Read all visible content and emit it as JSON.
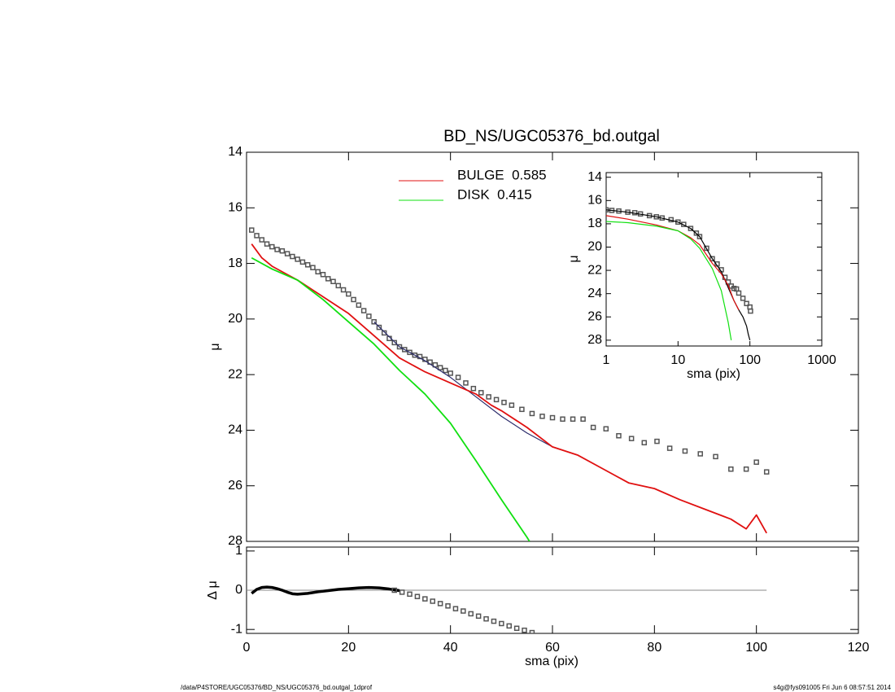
{
  "chart_data": [
    {
      "type": "line",
      "title": "BD_NS/UGC05376_bd.outgal",
      "ylabel": "μ",
      "xlim": [
        0,
        120
      ],
      "xticks": [
        0,
        20,
        40,
        60,
        80,
        100,
        120
      ],
      "xticklabels": false,
      "ylim": [
        28,
        14
      ],
      "yticks": [
        14,
        16,
        18,
        20,
        22,
        24,
        26,
        28
      ],
      "legend": true,
      "series": [
        {
          "style": "markers",
          "color": "#555555",
          "x": [
            1,
            2,
            3,
            4,
            5,
            6,
            7,
            8,
            9,
            10,
            11,
            12,
            13,
            14,
            15,
            16,
            17,
            18,
            19,
            20,
            21,
            22,
            23,
            24,
            25,
            26,
            27,
            28,
            29,
            30,
            31,
            32,
            33,
            34,
            35,
            36,
            37,
            38,
            39,
            40,
            41.5,
            43,
            44.5,
            46,
            47.5,
            49,
            50.5,
            52,
            54,
            56,
            58,
            60,
            62,
            64,
            66,
            68,
            70.5,
            73,
            75.5,
            78,
            80.5,
            83,
            86,
            89,
            92,
            95,
            98,
            100,
            102
          ],
          "values": [
            16.8,
            17.0,
            17.15,
            17.3,
            17.4,
            17.5,
            17.55,
            17.65,
            17.75,
            17.85,
            17.95,
            18.05,
            18.15,
            18.3,
            18.4,
            18.55,
            18.65,
            18.8,
            18.95,
            19.1,
            19.3,
            19.5,
            19.7,
            19.9,
            20.1,
            20.3,
            20.5,
            20.7,
            20.85,
            21.0,
            21.1,
            21.2,
            21.3,
            21.35,
            21.45,
            21.55,
            21.65,
            21.75,
            21.85,
            21.95,
            22.1,
            22.3,
            22.5,
            22.65,
            22.8,
            22.9,
            23.0,
            23.1,
            23.25,
            23.4,
            23.5,
            23.55,
            23.6,
            23.6,
            23.6,
            23.9,
            23.95,
            24.2,
            24.3,
            24.45,
            24.4,
            24.65,
            24.75,
            24.85,
            24.95,
            25.4,
            25.4,
            25.15,
            25.5
          ]
        },
        {
          "style": "line",
          "color": "#2a2a6a",
          "x": [
            25,
            30,
            35,
            40,
            45,
            50,
            55,
            60
          ],
          "values": [
            20.1,
            21.0,
            21.5,
            22.1,
            22.8,
            23.5,
            24.1,
            24.6
          ]
        },
        {
          "style": "line",
          "name": "BULGE  0.585",
          "color": "#e01010",
          "x": [
            1,
            3,
            5,
            8,
            10,
            15,
            20,
            25,
            30,
            35,
            40,
            45,
            48,
            50,
            55,
            60,
            65,
            70,
            75,
            80,
            85,
            90,
            95,
            98,
            100,
            102
          ],
          "values": [
            17.3,
            17.8,
            18.1,
            18.4,
            18.6,
            19.2,
            19.8,
            20.6,
            21.4,
            21.9,
            22.3,
            22.7,
            23.1,
            23.3,
            23.9,
            24.6,
            24.9,
            25.4,
            25.9,
            26.1,
            26.5,
            26.85,
            27.2,
            27.55,
            27.05,
            27.7
          ]
        },
        {
          "style": "line",
          "name": "DISK  0.415",
          "color": "#10e010",
          "x": [
            1,
            5,
            10,
            15,
            20,
            25,
            30,
            35,
            40,
            45,
            50,
            55,
            55.5
          ],
          "values": [
            17.8,
            18.2,
            18.6,
            19.3,
            20.1,
            20.9,
            21.85,
            22.7,
            23.75,
            25.1,
            26.5,
            27.85,
            28
          ]
        }
      ]
    },
    {
      "type": "line",
      "xlabel": "sma (pix)",
      "ylabel": "Δ μ",
      "xlim": [
        0,
        120
      ],
      "xticks": [
        0,
        20,
        40,
        60,
        80,
        100,
        120
      ],
      "ylim": [
        -1.1,
        1.1
      ],
      "yticks": [
        -1,
        0,
        1
      ],
      "reference_line": {
        "y": 0,
        "x": [
          0,
          102
        ],
        "color": "#888888"
      },
      "series": [
        {
          "style": "thickline",
          "color": "#000000",
          "x": [
            1,
            2,
            3,
            4,
            5,
            6,
            7,
            8,
            9,
            10,
            12,
            14,
            16,
            18,
            20,
            22,
            24,
            26,
            28,
            30
          ],
          "values": [
            -0.08,
            0.02,
            0.07,
            0.08,
            0.07,
            0.04,
            0,
            -0.05,
            -0.09,
            -0.1,
            -0.08,
            -0.04,
            -0.01,
            0.02,
            0.04,
            0.06,
            0.07,
            0.06,
            0.03,
            -0.01
          ]
        },
        {
          "style": "markers",
          "color": "#555555",
          "x": [
            29,
            30.5,
            32,
            33.5,
            35,
            36.5,
            38,
            39.5,
            41,
            42.5,
            44,
            45.5,
            47,
            48.5,
            50,
            51.5,
            53,
            54.5,
            56
          ],
          "values": [
            0,
            -0.05,
            -0.1,
            -0.16,
            -0.22,
            -0.28,
            -0.34,
            -0.4,
            -0.47,
            -0.53,
            -0.6,
            -0.66,
            -0.73,
            -0.79,
            -0.85,
            -0.91,
            -0.97,
            -1.02,
            -1.08
          ]
        }
      ]
    },
    {
      "type": "line",
      "xlabel": "sma (pix)",
      "ylabel": "μ",
      "xlog": true,
      "xlim": [
        1,
        1000
      ],
      "xticks": [
        1,
        10,
        100,
        1000
      ],
      "ylim": [
        28.5,
        13.6
      ],
      "yticks": [
        14,
        16,
        18,
        20,
        22,
        24,
        26,
        28
      ],
      "series": [
        {
          "style": "markers",
          "color": "#555555",
          "x": [
            1,
            1.2,
            1.5,
            2,
            2.5,
            3,
            4,
            5,
            6,
            8,
            10,
            12,
            15,
            18,
            20,
            25,
            30,
            35,
            40,
            45,
            50,
            55,
            60,
            65,
            70,
            80,
            90,
            100,
            102
          ],
          "values": [
            16.8,
            16.85,
            16.9,
            17.0,
            17.05,
            17.15,
            17.3,
            17.4,
            17.5,
            17.65,
            17.85,
            18.05,
            18.4,
            18.8,
            19.1,
            20.1,
            21.0,
            21.45,
            21.95,
            22.6,
            23.0,
            23.35,
            23.55,
            23.6,
            23.95,
            24.4,
            24.85,
            25.15,
            25.5
          ]
        },
        {
          "style": "line",
          "color": "#000000",
          "x": [
            1,
            2,
            5,
            10,
            15,
            20,
            30,
            40,
            50,
            60,
            70,
            80,
            90,
            95,
            100
          ],
          "values": [
            16.8,
            17.0,
            17.4,
            17.85,
            18.4,
            19.1,
            21.0,
            22.1,
            23.5,
            24.6,
            25.4,
            26.0,
            26.8,
            27.5,
            28
          ]
        },
        {
          "style": "line",
          "color": "#e01010",
          "x": [
            1,
            2,
            5,
            10,
            15,
            20,
            30,
            40,
            50,
            60,
            70
          ],
          "values": [
            17.3,
            17.6,
            18.1,
            18.6,
            19.2,
            19.8,
            21.4,
            22.3,
            23.3,
            24.6,
            25.4
          ]
        },
        {
          "style": "line",
          "color": "#10e010",
          "x": [
            1,
            2,
            5,
            10,
            15,
            20,
            30,
            40,
            50,
            55
          ],
          "values": [
            17.8,
            17.9,
            18.2,
            18.6,
            19.3,
            20.1,
            21.85,
            23.75,
            26.5,
            28
          ]
        }
      ]
    }
  ],
  "footer": {
    "left": "/data/P4STORE/UGC05376/BD_NS/UGC05376_bd.outgal_1dprof",
    "right": "s4g@fys091005  Fri Jun  6 08:57:51 2014"
  }
}
